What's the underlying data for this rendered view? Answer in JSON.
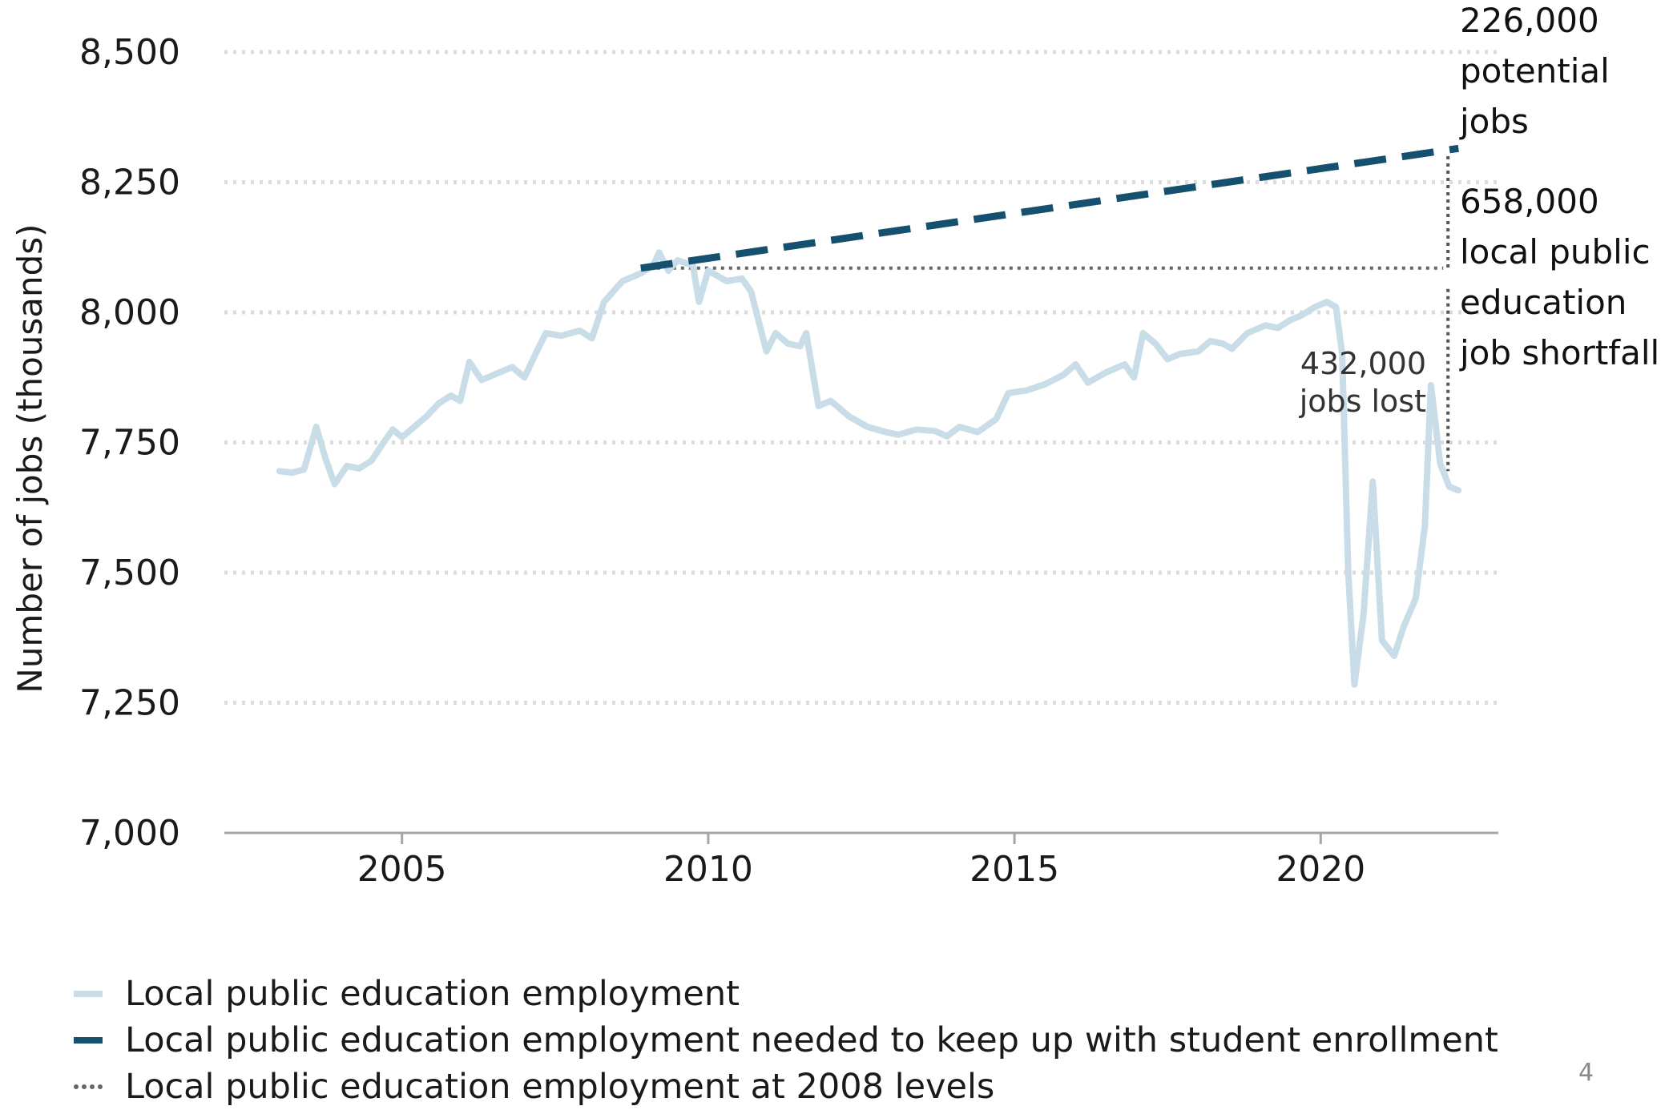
{
  "chart_data": {
    "type": "line",
    "title": "",
    "xlabel": "",
    "ylabel": "Number of jobs (thousands)",
    "xlim": [
      2002.1,
      2022.9
    ],
    "ylim": [
      7000,
      8500
    ],
    "yticks": [
      7000,
      7250,
      7500,
      7750,
      8000,
      8250,
      8500
    ],
    "ytick_labels": [
      "7,000",
      "7,250",
      "7,500",
      "7,750",
      "8,000",
      "8,250",
      "8,500"
    ],
    "xticks": [
      2005,
      2010,
      2015,
      2020
    ],
    "xtick_labels": [
      "2005",
      "2010",
      "2015",
      "2020"
    ],
    "grid": "horizontal dotted",
    "legend_position": "bottom-left",
    "series": [
      {
        "name": "Local public education employment",
        "color": "#c9dde8",
        "style": "solid",
        "points": [
          [
            2003.0,
            7695
          ],
          [
            2003.2,
            7692
          ],
          [
            2003.4,
            7698
          ],
          [
            2003.6,
            7780
          ],
          [
            2003.75,
            7720
          ],
          [
            2003.9,
            7670
          ],
          [
            2004.1,
            7705
          ],
          [
            2004.3,
            7700
          ],
          [
            2004.5,
            7715
          ],
          [
            2004.7,
            7750
          ],
          [
            2004.85,
            7775
          ],
          [
            2005.0,
            7760
          ],
          [
            2005.2,
            7780
          ],
          [
            2005.4,
            7800
          ],
          [
            2005.6,
            7825
          ],
          [
            2005.8,
            7840
          ],
          [
            2005.95,
            7830
          ],
          [
            2006.1,
            7905
          ],
          [
            2006.3,
            7870
          ],
          [
            2006.5,
            7880
          ],
          [
            2006.8,
            7895
          ],
          [
            2007.0,
            7875
          ],
          [
            2007.2,
            7925
          ],
          [
            2007.35,
            7960
          ],
          [
            2007.6,
            7955
          ],
          [
            2007.9,
            7965
          ],
          [
            2008.1,
            7950
          ],
          [
            2008.3,
            8020
          ],
          [
            2008.6,
            8060
          ],
          [
            2008.9,
            8075
          ],
          [
            2009.1,
            8090
          ],
          [
            2009.2,
            8115
          ],
          [
            2009.35,
            8080
          ],
          [
            2009.5,
            8100
          ],
          [
            2009.75,
            8090
          ],
          [
            2009.85,
            8020
          ],
          [
            2010.0,
            8080
          ],
          [
            2010.3,
            8060
          ],
          [
            2010.55,
            8065
          ],
          [
            2010.7,
            8040
          ],
          [
            2010.95,
            7925
          ],
          [
            2011.1,
            7960
          ],
          [
            2011.3,
            7940
          ],
          [
            2011.5,
            7935
          ],
          [
            2011.6,
            7960
          ],
          [
            2011.8,
            7820
          ],
          [
            2012.0,
            7830
          ],
          [
            2012.3,
            7800
          ],
          [
            2012.6,
            7780
          ],
          [
            2012.9,
            7770
          ],
          [
            2013.1,
            7765
          ],
          [
            2013.4,
            7775
          ],
          [
            2013.7,
            7772
          ],
          [
            2013.9,
            7762
          ],
          [
            2014.1,
            7780
          ],
          [
            2014.4,
            7770
          ],
          [
            2014.7,
            7795
          ],
          [
            2014.9,
            7845
          ],
          [
            2015.2,
            7850
          ],
          [
            2015.5,
            7862
          ],
          [
            2015.8,
            7880
          ],
          [
            2016.0,
            7900
          ],
          [
            2016.2,
            7865
          ],
          [
            2016.5,
            7885
          ],
          [
            2016.8,
            7900
          ],
          [
            2016.95,
            7875
          ],
          [
            2017.1,
            7960
          ],
          [
            2017.3,
            7940
          ],
          [
            2017.5,
            7910
          ],
          [
            2017.7,
            7920
          ],
          [
            2018.0,
            7925
          ],
          [
            2018.2,
            7945
          ],
          [
            2018.4,
            7940
          ],
          [
            2018.55,
            7930
          ],
          [
            2018.8,
            7960
          ],
          [
            2019.1,
            7975
          ],
          [
            2019.3,
            7970
          ],
          [
            2019.5,
            7985
          ],
          [
            2019.7,
            7995
          ],
          [
            2019.9,
            8010
          ],
          [
            2020.1,
            8020
          ],
          [
            2020.25,
            8010
          ],
          [
            2020.35,
            7920
          ],
          [
            2020.45,
            7500
          ],
          [
            2020.55,
            7285
          ],
          [
            2020.7,
            7420
          ],
          [
            2020.85,
            7675
          ],
          [
            2021.0,
            7370
          ],
          [
            2021.2,
            7340
          ],
          [
            2021.35,
            7395
          ],
          [
            2021.55,
            7450
          ],
          [
            2021.7,
            7590
          ],
          [
            2021.8,
            7860
          ],
          [
            2021.95,
            7710
          ],
          [
            2022.1,
            7665
          ],
          [
            2022.25,
            7658
          ]
        ]
      },
      {
        "name": "Local public education employment needed to keep up with student enrollment",
        "color": "#15506f",
        "style": "dashed",
        "points": [
          [
            2008.9,
            8085
          ],
          [
            2022.25,
            8315
          ]
        ]
      },
      {
        "name": "Local public education employment at 2008 levels",
        "color": "#666666",
        "style": "dotted",
        "points": [
          [
            2008.9,
            8085
          ],
          [
            2022.0,
            8085
          ]
        ]
      }
    ],
    "annotations": {
      "potential": [
        "226,000",
        "potential",
        "jobs"
      ],
      "shortfall": [
        "658,000",
        "local public",
        "education",
        "job shortfall"
      ],
      "lost": [
        "432,000",
        "jobs lost"
      ]
    }
  },
  "page": {
    "number": "4"
  }
}
